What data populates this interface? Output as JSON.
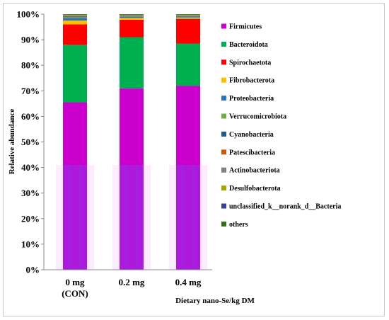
{
  "chart_data": {
    "type": "bar",
    "stacked": true,
    "categories": [
      [
        "0 mg",
        "(CON)"
      ],
      [
        "0.2 mg"
      ],
      [
        "0.4 mg"
      ]
    ],
    "xlabel": "Dietary nano-Se/kg DM",
    "ylabel": "Relative abundance",
    "ylim": [
      0,
      100
    ],
    "yticks": [
      "0%",
      "10%",
      "20%",
      "30%",
      "40%",
      "50%",
      "60%",
      "70%",
      "80%",
      "90%",
      "100%"
    ],
    "legend_position": "right",
    "grid": false,
    "series": [
      {
        "name": "Firmicutes",
        "color": "#cc00cc",
        "values": [
          65.5,
          71.0,
          72.0
        ]
      },
      {
        "name": "Bacteroidota",
        "color": "#00b050",
        "values": [
          22.5,
          20.0,
          16.5
        ]
      },
      {
        "name": "Spirochaetota",
        "color": "#ff0000",
        "values": [
          8.0,
          6.8,
          9.6
        ]
      },
      {
        "name": "Fibrobacterota",
        "color": "#ffc000",
        "values": [
          1.5,
          0.7,
          0.3
        ]
      },
      {
        "name": "Proteobacteria",
        "color": "#2e75b6",
        "values": [
          1.0,
          0.4,
          0.3
        ]
      },
      {
        "name": "Verrucomicrobiota",
        "color": "#70ad47",
        "values": [
          0.3,
          0.2,
          0.2
        ]
      },
      {
        "name": "Cyanobacteria",
        "color": "#1f5b8c",
        "values": [
          0.3,
          0.2,
          0.2
        ]
      },
      {
        "name": "Patescibacteria",
        "color": "#c55a11",
        "values": [
          0.2,
          0.2,
          0.2
        ]
      },
      {
        "name": "Actinobacteriota",
        "color": "#7f7f7f",
        "values": [
          0.2,
          0.1,
          0.2
        ]
      },
      {
        "name": "Desulfobacterota",
        "color": "#a5a500",
        "values": [
          0.2,
          0.1,
          0.2
        ]
      },
      {
        "name": "unclassified_k__norank_d__Bacteria",
        "color": "#3c3c9c",
        "values": [
          0.1,
          0.1,
          0.1
        ]
      },
      {
        "name": "others",
        "color": "#3a6e1f",
        "values": [
          0.2,
          0.2,
          0.2
        ]
      }
    ]
  }
}
